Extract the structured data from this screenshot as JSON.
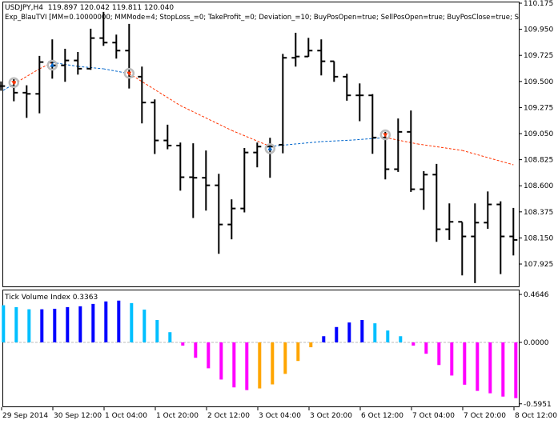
{
  "header": {
    "symbol_line": "USDJPY,H4  119.897 120.042 119.811 120.040",
    "expert_line": "Exp_BlauTVI [MM=0.10000000; MMMode=4; StopLoss_=0; TakeProfit_=0; Deviation_=10; BuyPosOpen=true; SellPosOpen=true; BuyPosClose=true; S"
  },
  "indicator": {
    "label": "Tick Volume Index 0.3363"
  },
  "colors": {
    "background": "#ffffff",
    "bars": "#000000",
    "ma_up": "#0066cc",
    "ma_down": "#ff3300",
    "hist_up_strong": "#0000ff",
    "hist_up_weak": "#00bfff",
    "hist_down_strong": "#ff00ff",
    "hist_down_weak": "#ffa500",
    "signal_circle": "#bbbbbb",
    "zero_line": "#bbbbbb"
  },
  "chart_data": [
    {
      "type": "ohlc",
      "symbol": "USDJPY",
      "timeframe": "H4",
      "price_axis_labels": [
        "110.175",
        "109.950",
        "109.725",
        "109.500",
        "109.275",
        "109.050",
        "108.825",
        "108.600",
        "108.375",
        "108.150",
        "107.925"
      ],
      "ylim": [
        107.73,
        110.175
      ],
      "bars": [
        [
          109.46,
          109.5,
          109.42,
          109.46
        ],
        [
          109.46,
          109.524,
          109.329,
          109.403
        ],
        [
          109.403,
          109.467,
          109.186,
          109.393
        ],
        [
          109.393,
          109.72,
          109.225,
          109.667
        ],
        [
          109.667,
          109.863,
          109.524,
          109.639
        ],
        [
          109.639,
          109.782,
          109.497,
          109.681
        ],
        [
          109.681,
          109.754,
          109.559,
          109.61
        ],
        [
          109.61,
          109.955,
          109.6,
          109.874
        ],
        [
          109.874,
          110.1,
          109.807,
          109.835
        ],
        [
          109.835,
          109.904,
          109.697,
          109.766
        ],
        [
          109.766,
          109.996,
          109.439,
          109.541
        ],
        [
          109.541,
          109.628,
          109.138,
          109.318
        ],
        [
          109.318,
          109.345,
          108.874,
          108.991
        ],
        [
          108.991,
          109.127,
          108.915,
          108.947
        ],
        [
          108.947,
          108.973,
          108.558,
          108.674
        ],
        [
          108.674,
          108.966,
          108.322,
          108.669
        ],
        [
          108.669,
          108.904,
          108.386,
          108.604
        ],
        [
          108.604,
          108.703,
          108.013,
          108.266
        ],
        [
          108.266,
          108.483,
          108.138,
          108.404
        ],
        [
          108.404,
          108.926,
          108.37,
          108.887
        ],
        [
          108.887,
          108.973,
          108.759,
          108.938
        ],
        [
          108.938,
          109.014,
          108.669,
          108.938
        ],
        [
          108.954,
          109.738,
          108.88,
          109.704
        ],
        [
          109.704,
          109.92,
          109.628,
          109.715
        ],
        [
          109.715,
          109.876,
          109.713,
          109.766
        ],
        [
          109.766,
          109.863,
          109.552,
          109.674
        ],
        [
          109.674,
          109.674,
          109.497,
          109.541
        ],
        [
          109.541,
          109.566,
          109.334,
          109.38
        ],
        [
          109.38,
          109.483,
          109.157,
          109.38
        ],
        [
          109.38,
          109.391,
          108.876,
          109.016
        ],
        [
          109.016,
          109.065,
          108.655,
          108.743
        ],
        [
          108.743,
          109.18,
          108.72,
          109.065
        ],
        [
          109.065,
          109.249,
          108.547,
          108.57
        ],
        [
          108.57,
          108.726,
          108.393,
          108.696
        ],
        [
          108.696,
          108.789,
          108.117,
          108.225
        ],
        [
          108.225,
          108.448,
          108.133,
          108.289
        ],
        [
          108.289,
          108.287,
          107.827,
          108.163
        ],
        [
          108.163,
          108.448,
          107.76,
          108.282
        ],
        [
          108.282,
          108.551,
          108.229,
          108.439
        ],
        [
          108.439,
          108.466,
          107.838,
          108.163
        ],
        [
          108.163,
          108.409,
          107.999,
          108.133
        ]
      ],
      "moving_average": [
        {
          "bar": -0.1,
          "value": 109.423,
          "trend": "up"
        },
        {
          "bar": 1,
          "value": 109.478,
          "trend": "down"
        },
        {
          "bar": 3,
          "value": 109.609,
          "trend": "down"
        },
        {
          "bar": 4,
          "value": 109.664,
          "trend": "up"
        },
        {
          "bar": 6,
          "value": 109.63,
          "trend": "up"
        },
        {
          "bar": 8,
          "value": 109.609,
          "trend": "up"
        },
        {
          "bar": 10,
          "value": 109.568,
          "trend": "down"
        },
        {
          "bar": 14,
          "value": 109.292,
          "trend": "down"
        },
        {
          "bar": 18,
          "value": 109.078,
          "trend": "down"
        },
        {
          "bar": 21,
          "value": 108.94,
          "trend": "up"
        },
        {
          "bar": 25,
          "value": 108.981,
          "trend": "up"
        },
        {
          "bar": 27.5,
          "value": 108.995,
          "trend": "up"
        },
        {
          "bar": 30,
          "value": 109.016,
          "trend": "down"
        },
        {
          "bar": 32.5,
          "value": 108.961,
          "trend": "down"
        },
        {
          "bar": 36,
          "value": 108.905,
          "trend": "down"
        },
        {
          "bar": 40,
          "value": 108.781,
          "trend": "down"
        }
      ],
      "signals": [
        {
          "bar": 1,
          "value": 109.49,
          "direction": "sell"
        },
        {
          "bar": 4,
          "value": 109.64,
          "direction": "buy"
        },
        {
          "bar": 10,
          "value": 109.57,
          "direction": "sell"
        },
        {
          "bar": 21,
          "value": 108.92,
          "direction": "buy"
        },
        {
          "bar": 30,
          "value": 109.04,
          "direction": "sell"
        }
      ]
    },
    {
      "type": "bar",
      "title": "Tick Volume Index 0.3363",
      "ylim": [
        -0.5951,
        0.4646
      ],
      "axis_labels": [
        "0.4646",
        "0.0000",
        "-0.5951"
      ],
      "values": [
        0.36,
        0.342,
        0.321,
        0.321,
        0.326,
        0.342,
        0.35,
        0.373,
        0.397,
        0.405,
        0.381,
        0.318,
        0.217,
        0.099,
        -0.031,
        -0.149,
        -0.251,
        -0.36,
        -0.436,
        -0.462,
        -0.446,
        -0.407,
        -0.305,
        -0.18,
        -0.047,
        0.06,
        0.149,
        0.193,
        0.217,
        0.185,
        0.115,
        0.06,
        -0.031,
        -0.11,
        -0.219,
        -0.321,
        -0.41,
        -0.47,
        -0.493,
        -0.525,
        -0.54
      ],
      "bar_colors": [
        "weak",
        "weak",
        "weak",
        "strong",
        "strong",
        "strong",
        "strong",
        "strong",
        "strong",
        "strong",
        "weak",
        "weak",
        "weak",
        "weak",
        "strong",
        "strong",
        "strong",
        "strong",
        "strong",
        "strong",
        "weak",
        "weak",
        "weak",
        "weak",
        "weak",
        "strong",
        "strong",
        "strong",
        "strong",
        "weak",
        "weak",
        "weak",
        "strong",
        "strong",
        "strong",
        "strong",
        "strong",
        "strong",
        "strong",
        "strong",
        "strong"
      ]
    }
  ],
  "time_axis": [
    "29 Sep 2014",
    "30 Sep 12:00",
    "1 Oct 04:00",
    "1 Oct 20:00",
    "2 Oct 12:00",
    "3 Oct 04:00",
    "3 Oct 20:00",
    "6 Oct 12:00",
    "7 Oct 04:00",
    "7 Oct 20:00",
    "8 Oct 12:00"
  ]
}
